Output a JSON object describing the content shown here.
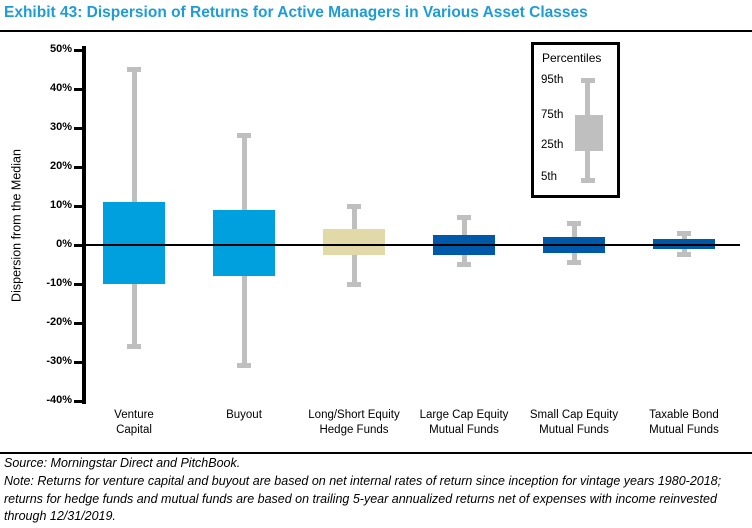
{
  "title": "Exhibit 43: Dispersion of Returns for Active Managers in Various Asset Classes",
  "chart_data": {
    "type": "boxplot",
    "title": "Exhibit 43: Dispersion of Returns for Active Managers in Various Asset Classes",
    "ylabel": "Dispersion from the Median",
    "ylim": [
      -40,
      50
    ],
    "ytick_step": 10,
    "ytick_suffix": "%",
    "grid": false,
    "zero_line": true,
    "legend": {
      "position": "top-right",
      "title": "Percentiles",
      "labels": [
        "95th",
        "75th",
        "25th",
        "5th"
      ]
    },
    "whisker_color": "#BFBFBF",
    "series": [
      {
        "name": "Venture Capital",
        "label_lines": [
          "Venture",
          "Capital"
        ],
        "p95": 45,
        "p75": 11,
        "p25": -10,
        "p5": -26,
        "color": "#00A0DF"
      },
      {
        "name": "Buyout",
        "label_lines": [
          "Buyout"
        ],
        "p95": 28,
        "p75": 9,
        "p25": -8,
        "p5": -31,
        "color": "#00A0DF"
      },
      {
        "name": "Long/Short Equity Hedge Funds",
        "label_lines": [
          "Long/Short Equity",
          "Hedge Funds"
        ],
        "p95": 10,
        "p75": 4,
        "p25": -2.5,
        "p5": -10,
        "color": "#E2D9A8"
      },
      {
        "name": "Large Cap Equity Mutual Funds",
        "label_lines": [
          "Large Cap Equity",
          "Mutual Funds"
        ],
        "p95": 7,
        "p75": 2.5,
        "p25": -2.5,
        "p5": -5,
        "color": "#0059A8"
      },
      {
        "name": "Small Cap Equity Mutual Funds",
        "label_lines": [
          "Small Cap Equity",
          "Mutual Funds"
        ],
        "p95": 5.5,
        "p75": 2,
        "p25": -2,
        "p5": -4.5,
        "color": "#0059A8"
      },
      {
        "name": "Taxable Bond Mutual Funds",
        "label_lines": [
          "Taxable Bond",
          "Mutual Funds"
        ],
        "p95": 3,
        "p75": 1.5,
        "p25": -1,
        "p5": -2.5,
        "color": "#0059A8"
      }
    ]
  },
  "footer": {
    "source": "Source: Morningstar Direct and PitchBook.",
    "note": "Note: Returns for venture capital and buyout are based on net internal rates of return since inception for vintage years 1980-2018; returns for hedge funds and mutual funds are based on trailing 5-year annualized returns net of expenses with income reinvested through 12/31/2019."
  },
  "colors": {
    "title_blue": "#1E9CD8",
    "bright_blue": "#00A0DF",
    "dark_blue": "#0059A8",
    "tan": "#E2D9A8",
    "whisker_gray": "#BFBFBF"
  }
}
